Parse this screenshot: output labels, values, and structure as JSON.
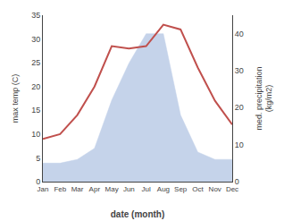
{
  "chart_data": {
    "type": "line",
    "xlabel": "date (month)",
    "ylabel": "max temp (C)",
    "y2label": "med. precipitation\n(kg/m2)",
    "categories": [
      "Jan",
      "Feb",
      "Mar",
      "Apr",
      "May",
      "Jun",
      "Jul",
      "Aug",
      "Sep",
      "Oct",
      "Nov",
      "Dec"
    ],
    "series": [
      {
        "type": "area",
        "color": "#c5d3ea",
        "axis": "y2",
        "values": [
          5,
          5,
          6,
          9,
          22,
          32,
          40,
          40,
          18,
          8,
          6,
          6
        ]
      },
      {
        "type": "line",
        "color": "#c0504d",
        "values": [
          9,
          10,
          14,
          20,
          28.5,
          28,
          28.5,
          33,
          32,
          24,
          17,
          12
        ]
      }
    ],
    "ylim": [
      0,
      35
    ],
    "yticks": [
      0,
      5,
      10,
      15,
      20,
      25,
      30,
      35
    ],
    "y2lim": [
      0,
      45
    ],
    "y2ticks": [
      0,
      10,
      20,
      30,
      40
    ],
    "grid": false
  }
}
